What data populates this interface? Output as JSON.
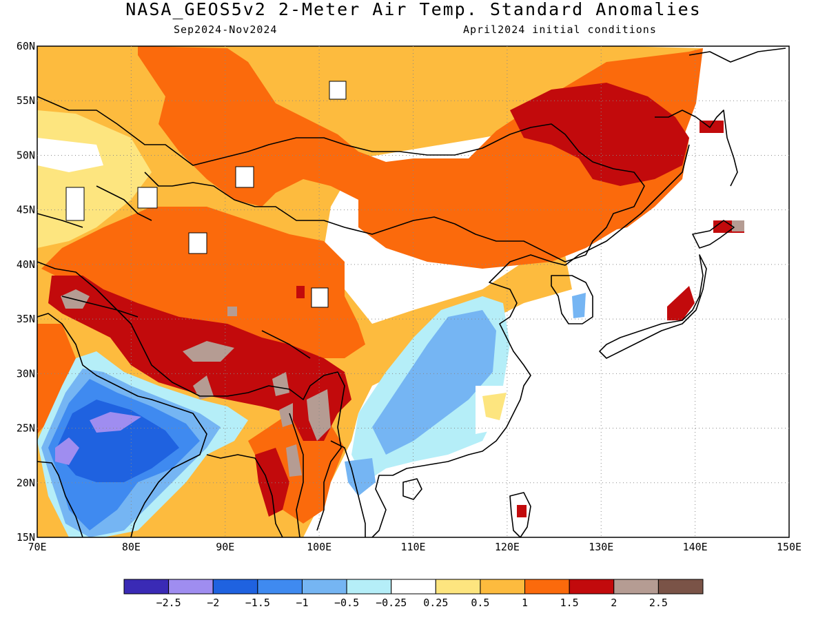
{
  "title": "NASA_GEOS5v2 2-Meter Air Temp. Standard Anomalies",
  "period": "Sep2024-Nov2024",
  "init": "April2024 initial conditions",
  "axes": {
    "lon_labels": [
      "70E",
      "80E",
      "90E",
      "100E",
      "110E",
      "120E",
      "130E",
      "140E",
      "150E"
    ],
    "lat_labels": [
      "60N",
      "55N",
      "50N",
      "45N",
      "40N",
      "35N",
      "30N",
      "25N",
      "20N",
      "15N"
    ],
    "lon_range": [
      70,
      150
    ],
    "lat_range": [
      15,
      60
    ],
    "grid": "dotted"
  },
  "colorbar": {
    "colors": [
      "#3a2ab5",
      "#9f8df0",
      "#1f62e0",
      "#3f8af0",
      "#75b5f3",
      "#b5eef8",
      "#ffffff",
      "#fde57f",
      "#fdbb3e",
      "#fb6a0c",
      "#c20a0c",
      "#b59c93",
      "#7a5347"
    ],
    "labels": [
      "-2.5",
      "-2",
      "-1.5",
      "-1",
      "-0.5",
      "-0.25",
      "0.25",
      "0.5",
      "1",
      "1.5",
      "2",
      "2.5"
    ]
  }
}
